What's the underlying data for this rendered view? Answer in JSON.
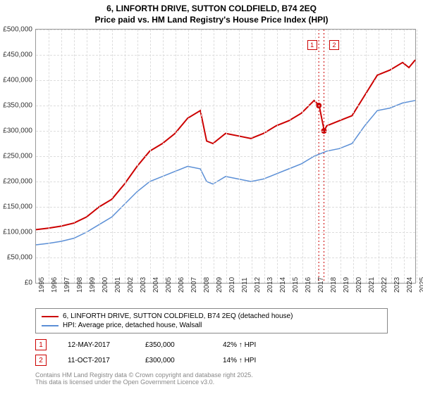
{
  "title_line1": "6, LINFORTH DRIVE, SUTTON COLDFIELD, B74 2EQ",
  "title_line2": "Price paid vs. HM Land Registry's House Price Index (HPI)",
  "chart": {
    "type": "line",
    "background_color": "#ffffff",
    "grid_color": "#dddddd",
    "border_color": "#999999",
    "x_range": [
      1995,
      2025
    ],
    "y_range": [
      0,
      500000
    ],
    "ytick_step": 50000,
    "yticks": [
      "£0",
      "£50,000",
      "£100,000",
      "£150,000",
      "£200,000",
      "£250,000",
      "£300,000",
      "£350,000",
      "£400,000",
      "£450,000",
      "£500,000"
    ],
    "xticks": [
      "1995",
      "1996",
      "1997",
      "1998",
      "1999",
      "2000",
      "2001",
      "2002",
      "2003",
      "2004",
      "2005",
      "2006",
      "2007",
      "2008",
      "2009",
      "2010",
      "2011",
      "2012",
      "2013",
      "2014",
      "2015",
      "2016",
      "2017",
      "2018",
      "2019",
      "2020",
      "2021",
      "2022",
      "2023",
      "2024",
      "2025"
    ],
    "series": [
      {
        "name": "price_paid",
        "color": "#cc0000",
        "line_width": 2,
        "points": [
          [
            1995,
            105000
          ],
          [
            1996,
            108000
          ],
          [
            1997,
            112000
          ],
          [
            1998,
            118000
          ],
          [
            1999,
            130000
          ],
          [
            2000,
            150000
          ],
          [
            2001,
            165000
          ],
          [
            2002,
            195000
          ],
          [
            2003,
            230000
          ],
          [
            2004,
            260000
          ],
          [
            2005,
            275000
          ],
          [
            2006,
            295000
          ],
          [
            2007,
            325000
          ],
          [
            2008,
            340000
          ],
          [
            2008.5,
            280000
          ],
          [
            2009,
            275000
          ],
          [
            2010,
            295000
          ],
          [
            2011,
            290000
          ],
          [
            2012,
            285000
          ],
          [
            2013,
            295000
          ],
          [
            2014,
            310000
          ],
          [
            2015,
            320000
          ],
          [
            2016,
            335000
          ],
          [
            2017,
            360000
          ],
          [
            2017.4,
            350000
          ],
          [
            2017.8,
            300000
          ],
          [
            2018,
            310000
          ],
          [
            2019,
            320000
          ],
          [
            2020,
            330000
          ],
          [
            2021,
            370000
          ],
          [
            2022,
            410000
          ],
          [
            2023,
            420000
          ],
          [
            2024,
            435000
          ],
          [
            2024.5,
            425000
          ],
          [
            2025,
            440000
          ]
        ]
      },
      {
        "name": "hpi",
        "color": "#5b8fd6",
        "line_width": 1.5,
        "points": [
          [
            1995,
            75000
          ],
          [
            1996,
            78000
          ],
          [
            1997,
            82000
          ],
          [
            1998,
            88000
          ],
          [
            1999,
            100000
          ],
          [
            2000,
            115000
          ],
          [
            2001,
            130000
          ],
          [
            2002,
            155000
          ],
          [
            2003,
            180000
          ],
          [
            2004,
            200000
          ],
          [
            2005,
            210000
          ],
          [
            2006,
            220000
          ],
          [
            2007,
            230000
          ],
          [
            2008,
            225000
          ],
          [
            2008.5,
            200000
          ],
          [
            2009,
            195000
          ],
          [
            2010,
            210000
          ],
          [
            2011,
            205000
          ],
          [
            2012,
            200000
          ],
          [
            2013,
            205000
          ],
          [
            2014,
            215000
          ],
          [
            2015,
            225000
          ],
          [
            2016,
            235000
          ],
          [
            2017,
            250000
          ],
          [
            2018,
            260000
          ],
          [
            2019,
            265000
          ],
          [
            2020,
            275000
          ],
          [
            2021,
            310000
          ],
          [
            2022,
            340000
          ],
          [
            2023,
            345000
          ],
          [
            2024,
            355000
          ],
          [
            2025,
            360000
          ]
        ]
      }
    ],
    "markers": [
      {
        "num": "1",
        "x": 2017.37,
        "y": 350000,
        "color": "#cc0000"
      },
      {
        "num": "2",
        "x": 2017.78,
        "y": 300000,
        "color": "#cc0000"
      }
    ]
  },
  "legend": {
    "items": [
      {
        "color": "#cc0000",
        "label": "6, LINFORTH DRIVE, SUTTON COLDFIELD, B74 2EQ (detached house)"
      },
      {
        "color": "#5b8fd6",
        "label": "HPI: Average price, detached house, Walsall"
      }
    ]
  },
  "marker_rows": [
    {
      "num": "1",
      "color": "#cc0000",
      "date": "12-MAY-2017",
      "price": "£350,000",
      "change": "42% ↑ HPI"
    },
    {
      "num": "2",
      "color": "#cc0000",
      "date": "11-OCT-2017",
      "price": "£300,000",
      "change": "14% ↑ HPI"
    }
  ],
  "footer_line1": "Contains HM Land Registry data © Crown copyright and database right 2025.",
  "footer_line2": "This data is licensed under the Open Government Licence v3.0."
}
